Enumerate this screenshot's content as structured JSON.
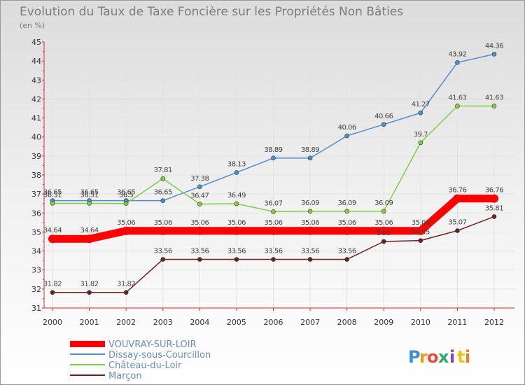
{
  "chart_data": {
    "type": "line",
    "title": "Evolution du Taux de Taxe Foncière sur les Propriétés Non Bâties",
    "unit_label": "(en %)",
    "x": [
      "2000",
      "2001",
      "2002",
      "2003",
      "2004",
      "2005",
      "2006",
      "2007",
      "2008",
      "2009",
      "2010",
      "2011",
      "2012"
    ],
    "ylim": [
      31,
      45
    ],
    "yticks": [
      31,
      32,
      33,
      34,
      35,
      36,
      37,
      38,
      39,
      40,
      41,
      42,
      43,
      44,
      45
    ],
    "grid": true,
    "legend_position": "bottom-left",
    "series": [
      {
        "name": "VOUVRAY-SUR-LOIR",
        "color": "#ff0000",
        "values": [
          34.64,
          34.64,
          35.06,
          35.06,
          35.06,
          35.06,
          35.06,
          35.06,
          35.06,
          35.06,
          35.06,
          36.76,
          36.76
        ]
      },
      {
        "name": "Dissay-sous-Courcillon",
        "color": "#4f8ed0",
        "values": [
          36.65,
          36.65,
          36.65,
          36.65,
          37.38,
          38.13,
          38.89,
          38.89,
          40.06,
          40.66,
          41.27,
          43.92,
          44.36
        ]
      },
      {
        "name": "Château-du-Loir",
        "color": "#7ed042",
        "values": [
          36.51,
          36.51,
          36.5,
          37.81,
          36.47,
          36.49,
          36.07,
          36.09,
          36.09,
          36.09,
          39.7,
          41.63,
          41.63
        ]
      },
      {
        "name": "Marçon",
        "color": "#6e1f1f",
        "values": [
          31.82,
          31.82,
          31.82,
          33.56,
          33.56,
          33.56,
          33.56,
          33.56,
          33.56,
          34.5,
          34.55,
          35.07,
          35.81
        ]
      }
    ],
    "data_labels": [
      [
        "34.64",
        "34.64",
        "35.06",
        "35.06",
        "35.06",
        "35.06",
        "35.06",
        "35.06",
        "35.06",
        "35.06",
        "35.06",
        "36.76",
        "36.76"
      ],
      [
        "36.65",
        "36.65",
        "36.65",
        "36.65",
        "37.38",
        "38.13",
        "38.89",
        "38.89",
        "40.06",
        "40.66",
        "41.27",
        "43.92",
        "44.36"
      ],
      [
        "36.51",
        "36.51",
        "36.5",
        "37.81",
        "36.47",
        "36.49",
        "36.07",
        "36.09",
        "36.09",
        "36.09",
        "39.7",
        "41.63",
        "41.63"
      ],
      [
        "31.82",
        "31.82",
        "31.82",
        "33.56",
        "33.56",
        "33.56",
        "33.56",
        "33.56",
        "33.56",
        "34.5",
        "34.55",
        "35.07",
        "35.81"
      ]
    ]
  },
  "branding": {
    "letters": [
      "P",
      "r",
      "o",
      "x",
      "i",
      "t",
      "i"
    ],
    "colors": [
      "#3b8fd9",
      "#f39c12",
      "#e74c3c",
      "#27ae60",
      "#8e44ad",
      "#f1c40f",
      "#e67e22"
    ]
  }
}
